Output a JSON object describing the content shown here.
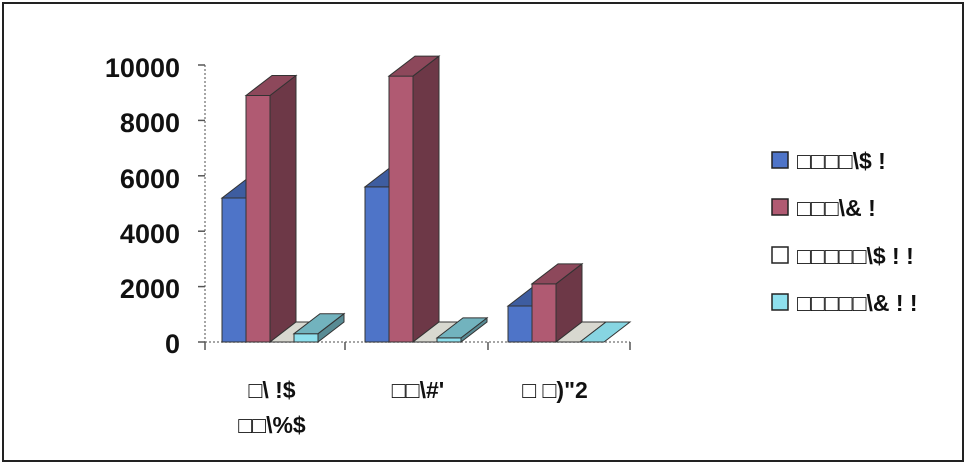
{
  "chart_data": {
    "type": "bar",
    "categories": [
      "□\\ !$ □□\\%$",
      "□□\\#'",
      "□ □)\"2"
    ],
    "series": [
      {
        "name": "□□□□\\$ !",
        "values": [
          5200,
          5600,
          1300
        ],
        "color": "#4e74c8"
      },
      {
        "name": "□□□\\& !",
        "values": [
          8900,
          9600,
          2100
        ],
        "color": "#b05a72"
      },
      {
        "name": "□□□□□\\$ ! !",
        "values": [
          0,
          0,
          0
        ],
        "color": "#ffffff"
      },
      {
        "name": "□□□□□\\& ! !",
        "values": [
          300,
          150,
          0
        ],
        "color": "#8ee0ee"
      }
    ],
    "ylim": [
      0,
      10000
    ],
    "yticks": [
      "10000",
      "8000",
      "6000",
      "4000",
      "2000",
      "0"
    ],
    "legend_position": "right",
    "grid": false,
    "style": "3d-clustered-column"
  }
}
